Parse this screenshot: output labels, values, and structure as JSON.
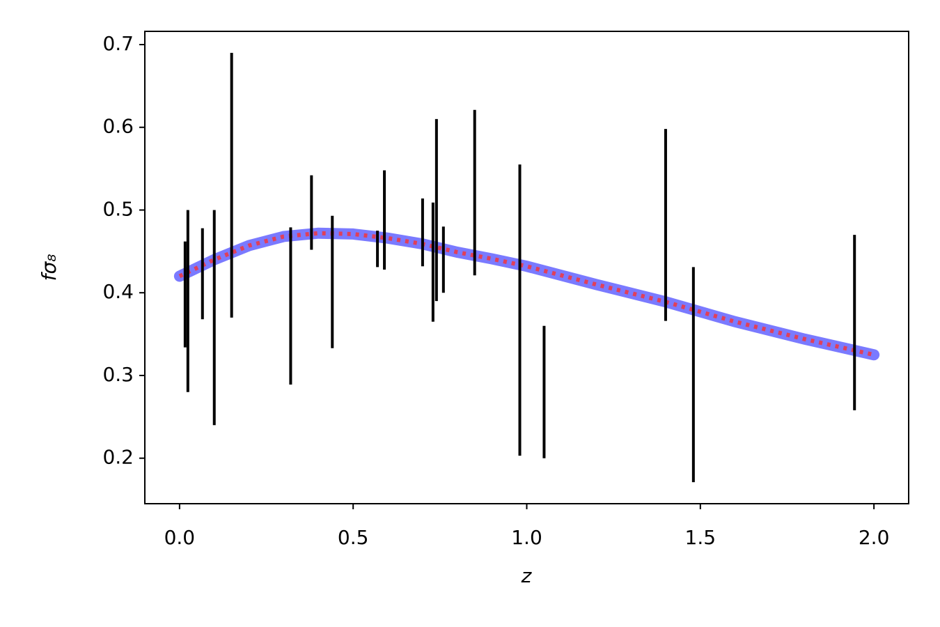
{
  "chart_data": {
    "type": "errorbar",
    "xlabel": "z",
    "ylabel": "fσ₈",
    "xlim": [
      -0.1,
      2.1
    ],
    "ylim": [
      0.145,
      0.716
    ],
    "xticks": [
      {
        "value": 0,
        "label": "0.0"
      },
      0.5,
      {
        "value": 1,
        "label": "1.0"
      },
      1.5,
      {
        "value": 2,
        "label": "2.0"
      }
    ],
    "yticks": [
      0.2,
      0.3,
      0.4,
      0.5,
      0.6,
      0.7
    ],
    "curve": {
      "color": "#4d4dff",
      "dash_color": "#e0405a",
      "x": [
        0,
        0.1,
        0.2,
        0.3,
        0.4,
        0.5,
        0.6,
        0.7,
        0.8,
        0.9,
        1.0,
        1.2,
        1.4,
        1.6,
        1.8,
        2.0
      ],
      "values": [
        0.42,
        0.44,
        0.457,
        0.468,
        0.472,
        0.471,
        0.466,
        0.459,
        0.449,
        0.441,
        0.432,
        0.41,
        0.389,
        0.365,
        0.344,
        0.325
      ]
    },
    "points": {
      "color": "#000000",
      "x": [
        0.016,
        0.024,
        0.066,
        0.1,
        0.15,
        0.32,
        0.38,
        0.44,
        0.57,
        0.59,
        0.7,
        0.73,
        0.74,
        0.76,
        0.85,
        0.98,
        1.05,
        1.4,
        1.48,
        1.944
      ],
      "values": [
        0.398,
        0.39,
        0.423,
        0.37,
        0.53,
        0.384,
        0.497,
        0.413,
        0.453,
        0.488,
        0.473,
        0.437,
        0.5,
        0.44,
        0.521,
        0.379,
        0.28,
        0.482,
        0.301,
        0.364
      ],
      "errors": [
        0.064,
        0.11,
        0.055,
        0.13,
        0.16,
        0.095,
        0.045,
        0.08,
        0.022,
        0.06,
        0.041,
        0.072,
        0.11,
        0.04,
        0.1,
        0.176,
        0.08,
        0.116,
        0.13,
        0.106
      ]
    }
  }
}
